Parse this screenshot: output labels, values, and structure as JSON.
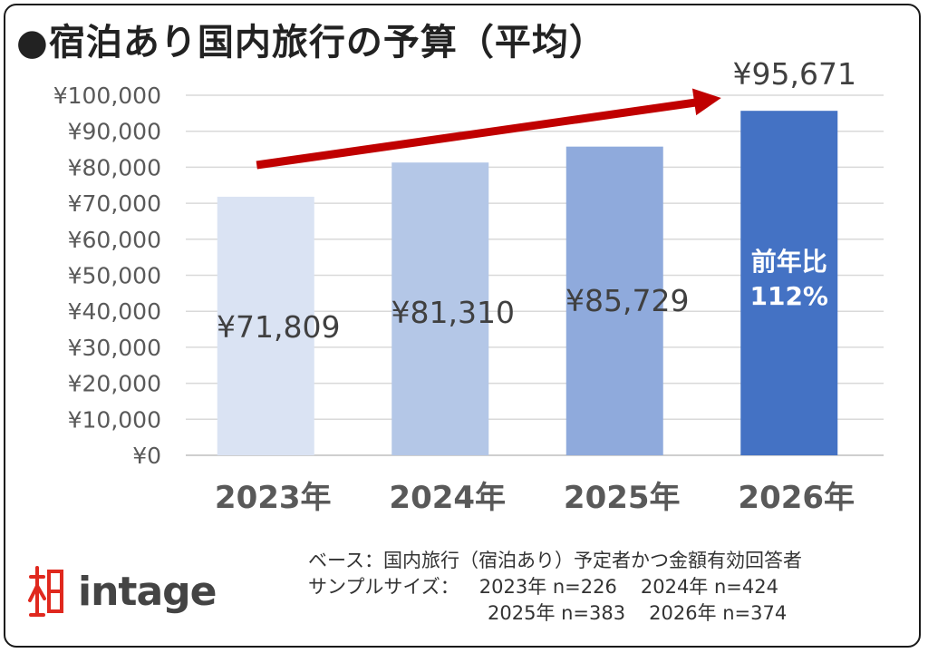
{
  "title": "●宿泊あり国内旅行の予算（平均）",
  "chart_data": {
    "type": "bar",
    "categories": [
      "2023年",
      "2024年",
      "2025年",
      "2026年"
    ],
    "values": [
      71809,
      81310,
      85729,
      95671
    ],
    "value_labels": [
      "¥71,809",
      "¥81,310",
      "¥85,729",
      "¥95,671"
    ],
    "bar_colors": [
      "#dae3f3",
      "#b4c7e7",
      "#8faadc",
      "#4472c4"
    ],
    "ylim": [
      0,
      100000
    ],
    "yticks": [
      0,
      10000,
      20000,
      30000,
      40000,
      50000,
      60000,
      70000,
      80000,
      90000,
      100000
    ],
    "ytick_labels": [
      "¥0",
      "¥10,000",
      "¥20,000",
      "¥30,000",
      "¥40,000",
      "¥50,000",
      "¥60,000",
      "¥70,000",
      "¥80,000",
      "¥90,000",
      "¥100,000"
    ],
    "grid": true,
    "annotation": {
      "yoy_label_line1": "前年比",
      "yoy_label_line2": "112%",
      "trend_arrow_color": "#c00000"
    }
  },
  "footnote": {
    "base": "ベース：国内旅行（宿泊あり）予定者かつ金額有効回答者",
    "sample_label": "サンプルサイズ：",
    "samples": [
      "2023年 n=226",
      "2024年 n=424",
      "2025年 n=383",
      "2026年 n=374"
    ]
  },
  "logo": {
    "text": "intage",
    "mark_icon": "intage-mark-icon",
    "color": "#e0281e"
  }
}
